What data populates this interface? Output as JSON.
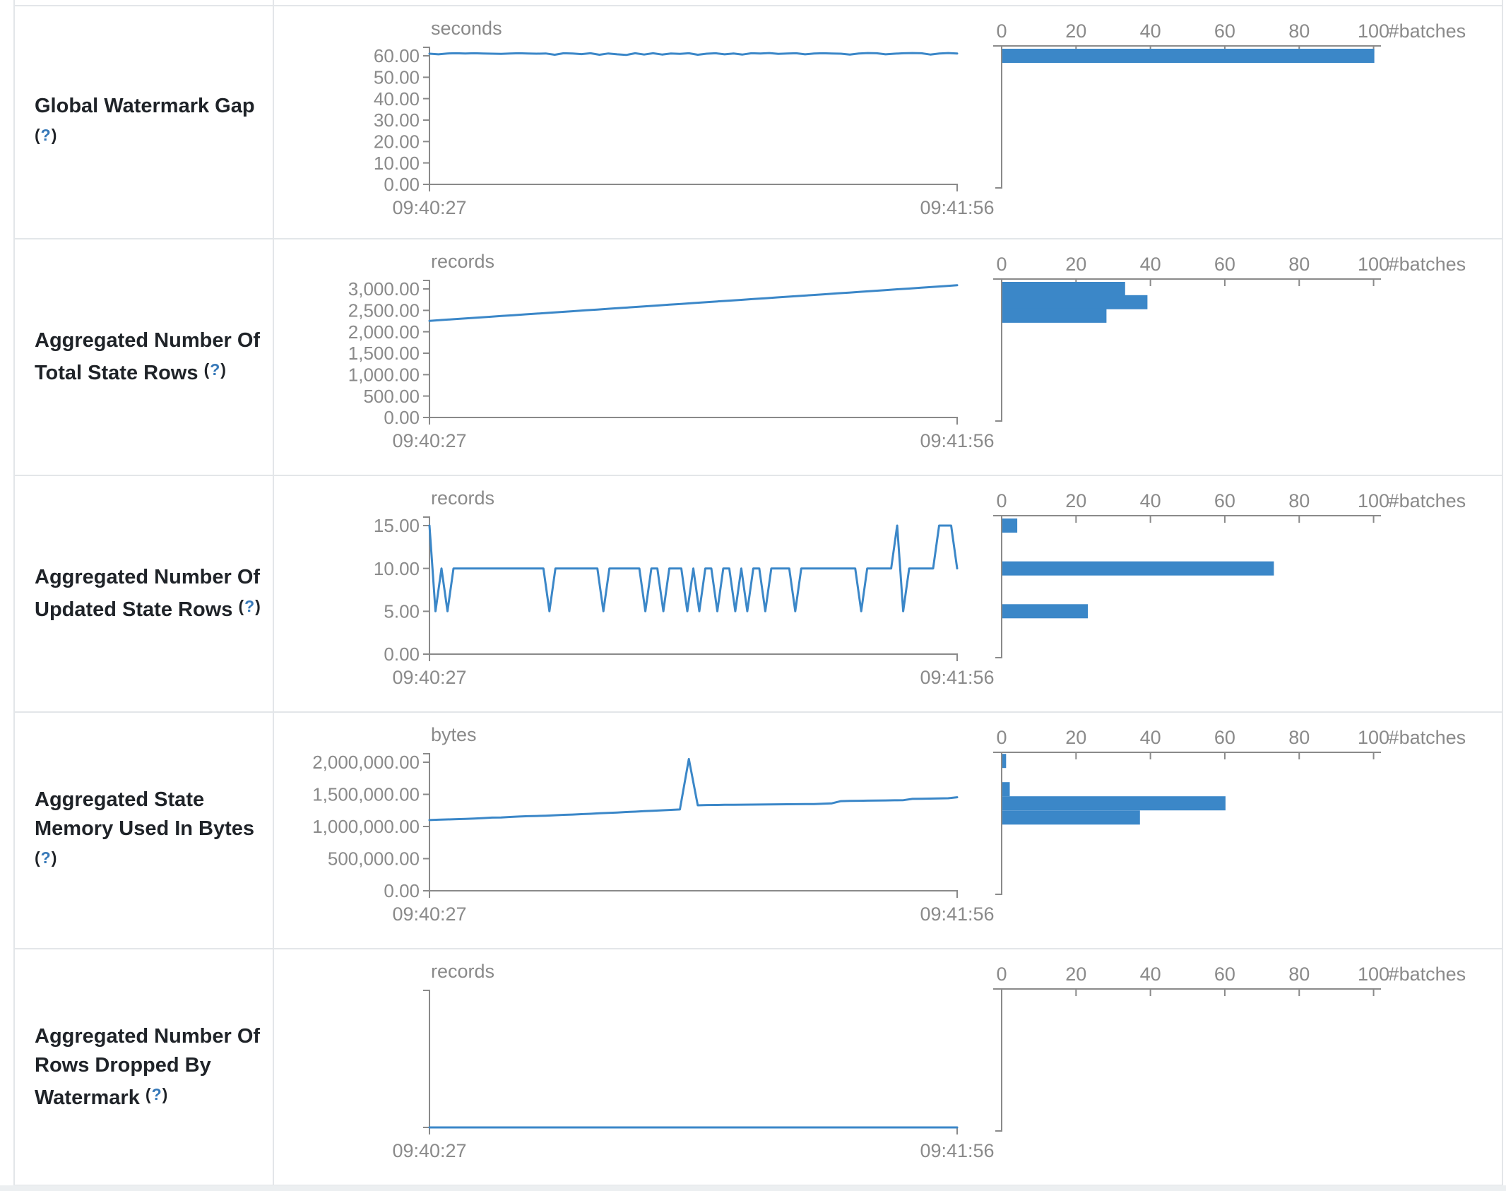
{
  "colors": {
    "accent_blue": "#3b87c8",
    "axis_gray": "#8a8a8a",
    "label_text": "#1f2328",
    "help_blue": "#3678b8",
    "table_border": "#e3e6e9",
    "page_strip": "#eceff1"
  },
  "rows": [
    {
      "label": "Global Watermark Gap",
      "help": {
        "open": "(",
        "q": "?",
        "close": ")"
      }
    },
    {
      "label": "Aggregated Number Of Total State Rows",
      "help": {
        "open": "(",
        "q": "?",
        "close": ")"
      }
    },
    {
      "label": "Aggregated Number Of Updated State Rows",
      "help": {
        "open": "(",
        "q": "?",
        "close": ")"
      }
    },
    {
      "label": "Aggregated State Memory Used In Bytes",
      "help": {
        "open": "(",
        "q": "?",
        "close": ")"
      }
    },
    {
      "label": "Aggregated Number Of Rows Dropped By Watermark",
      "help": {
        "open": "(",
        "q": "?",
        "close": ")"
      }
    }
  ],
  "chart_data": [
    {
      "type": "line",
      "name": "global-watermark-gap",
      "timeline": {
        "unit": "seconds",
        "x_start_label": "09:40:27",
        "x_end_label": "09:41:56",
        "y_ticks": [
          {
            "label": "60.00",
            "value": 60
          },
          {
            "label": "50.00",
            "value": 50
          },
          {
            "label": "40.00",
            "value": 40
          },
          {
            "label": "30.00",
            "value": 30
          },
          {
            "label": "20.00",
            "value": 20
          },
          {
            "label": "10.00",
            "value": 10
          },
          {
            "label": "0.00",
            "value": 0
          }
        ],
        "values": [
          61,
          60.7,
          61.1,
          61.2,
          61.1,
          61.2,
          61.1,
          61,
          60.9,
          61.1,
          61.2,
          61.1,
          61,
          61.1,
          60.5,
          61.2,
          61.1,
          60.8,
          61.2,
          60.5,
          61.1,
          60.7,
          60.4,
          61.2,
          60.6,
          61.2,
          60.6,
          61.1,
          60.9,
          61.2,
          60.5,
          61,
          61.2,
          60.7,
          61.1,
          60.6,
          61.2,
          61.1,
          61.3,
          60.9,
          61.1,
          61.2,
          60.7,
          61.1,
          61.2,
          61.1,
          61,
          60.6,
          61.1,
          61.3,
          61.2,
          60.7,
          61,
          61.2,
          61.3,
          61.2,
          60.6,
          61.1,
          61.3,
          61.1
        ]
      },
      "histogram": {
        "x_ticks": [
          0,
          20,
          40,
          60,
          80,
          100
        ],
        "x_unit": "#batches",
        "bars": [
          {
            "level": 60,
            "count": 100
          }
        ]
      }
    },
    {
      "type": "line",
      "name": "aggregated-total-state-rows",
      "timeline": {
        "unit": "records",
        "x_start_label": "09:40:27",
        "x_end_label": "09:41:56",
        "y_ticks": [
          {
            "label": "3,000.00",
            "value": 3000
          },
          {
            "label": "2,500.00",
            "value": 2500
          },
          {
            "label": "2,000.00",
            "value": 2000
          },
          {
            "label": "1,500.00",
            "value": 1500
          },
          {
            "label": "1,000.00",
            "value": 1000
          },
          {
            "label": "500.00",
            "value": 500
          },
          {
            "label": "0.00",
            "value": 0
          }
        ],
        "values": [
          2255,
          2274,
          2293,
          2311,
          2330,
          2349,
          2368,
          2387,
          2406,
          2425,
          2443,
          2462,
          2481,
          2500,
          2519,
          2538,
          2557,
          2575,
          2594,
          2613,
          2632,
          2651,
          2670,
          2689,
          2708,
          2726,
          2745,
          2764,
          2783,
          2802,
          2821,
          2840,
          2858,
          2877,
          2896,
          2915,
          2934,
          2953,
          2972,
          2991,
          3009,
          3028,
          3047,
          3066,
          3085
        ]
      },
      "histogram": {
        "x_ticks": [
          0,
          20,
          40,
          60,
          80,
          100
        ],
        "x_unit": "#batches",
        "bars": [
          {
            "level": 3000,
            "count": 33
          },
          {
            "level": 2690,
            "count": 39
          },
          {
            "level": 2375,
            "count": 28
          }
        ]
      }
    },
    {
      "type": "line",
      "name": "aggregated-updated-state-rows",
      "timeline": {
        "unit": "records",
        "x_start_label": "09:40:27",
        "x_end_label": "09:41:56",
        "y_ticks": [
          {
            "label": "15.00",
            "value": 15
          },
          {
            "label": "10.00",
            "value": 10
          },
          {
            "label": "5.00",
            "value": 5
          },
          {
            "label": "0.00",
            "value": 0
          }
        ],
        "values": [
          15,
          5,
          10,
          5,
          10,
          10,
          10,
          10,
          10,
          10,
          10,
          10,
          10,
          10,
          10,
          10,
          10,
          10,
          10,
          10,
          5,
          10,
          10,
          10,
          10,
          10,
          10,
          10,
          10,
          5,
          10,
          10,
          10,
          10,
          10,
          10,
          5,
          10,
          10,
          5,
          10,
          10,
          10,
          5,
          10,
          5,
          10,
          10,
          5,
          10,
          10,
          5,
          10,
          5,
          10,
          10,
          5,
          10,
          10,
          10,
          10,
          5,
          10,
          10,
          10,
          10,
          10,
          10,
          10,
          10,
          10,
          10,
          5,
          10,
          10,
          10,
          10,
          10,
          15,
          5,
          10,
          10,
          10,
          10,
          10,
          15,
          15,
          15,
          10
        ]
      },
      "histogram": {
        "x_ticks": [
          0,
          20,
          40,
          60,
          80,
          100
        ],
        "x_unit": "#batches",
        "bars": [
          {
            "level": 15,
            "count": 4
          },
          {
            "level": 10,
            "count": 73
          },
          {
            "level": 5,
            "count": 23
          }
        ]
      }
    },
    {
      "type": "line",
      "name": "aggregated-state-memory-used",
      "timeline": {
        "unit": "bytes",
        "x_start_label": "09:40:27",
        "x_end_label": "09:41:56",
        "y_ticks": [
          {
            "label": "2,000,000.00",
            "value": 2000000
          },
          {
            "label": "1,500,000.00",
            "value": 1500000
          },
          {
            "label": "1,000,000.00",
            "value": 1000000
          },
          {
            "label": "500,000.00",
            "value": 500000
          },
          {
            "label": "0.00",
            "value": 0
          }
        ],
        "values": [
          1100000,
          1105000,
          1110000,
          1114000,
          1118000,
          1123000,
          1131000,
          1138000,
          1141000,
          1148000,
          1155000,
          1160000,
          1164000,
          1168000,
          1175000,
          1181000,
          1186000,
          1192000,
          1198000,
          1205000,
          1212000,
          1218000,
          1225000,
          1231000,
          1238000,
          1245000,
          1252000,
          1258000,
          1265000,
          2050000,
          1330000,
          1334000,
          1335000,
          1337000,
          1338000,
          1340000,
          1341000,
          1342000,
          1343000,
          1345000,
          1346000,
          1347000,
          1348000,
          1350000,
          1355000,
          1360000,
          1395000,
          1398000,
          1400000,
          1402000,
          1404000,
          1405000,
          1408000,
          1410000,
          1430000,
          1432000,
          1434000,
          1436000,
          1440000,
          1455000
        ]
      },
      "histogram": {
        "x_ticks": [
          0,
          20,
          40,
          60,
          80,
          100
        ],
        "x_unit": "#batches",
        "bars": [
          {
            "level": 2020000,
            "count": 1
          },
          {
            "level": 1580000,
            "count": 2
          },
          {
            "level": 1360000,
            "count": 60
          },
          {
            "level": 1140000,
            "count": 37
          }
        ]
      }
    },
    {
      "type": "line",
      "name": "aggregated-rows-dropped-by-watermark",
      "timeline": {
        "unit": "records",
        "x_start_label": "09:40:27",
        "x_end_label": "09:41:56",
        "y_ticks": [],
        "values": [
          0,
          0,
          0,
          0,
          0,
          0,
          0,
          0,
          0,
          0
        ]
      },
      "histogram": {
        "x_ticks": [
          0,
          20,
          40,
          60,
          80,
          100
        ],
        "x_unit": "#batches",
        "bars": []
      }
    }
  ]
}
